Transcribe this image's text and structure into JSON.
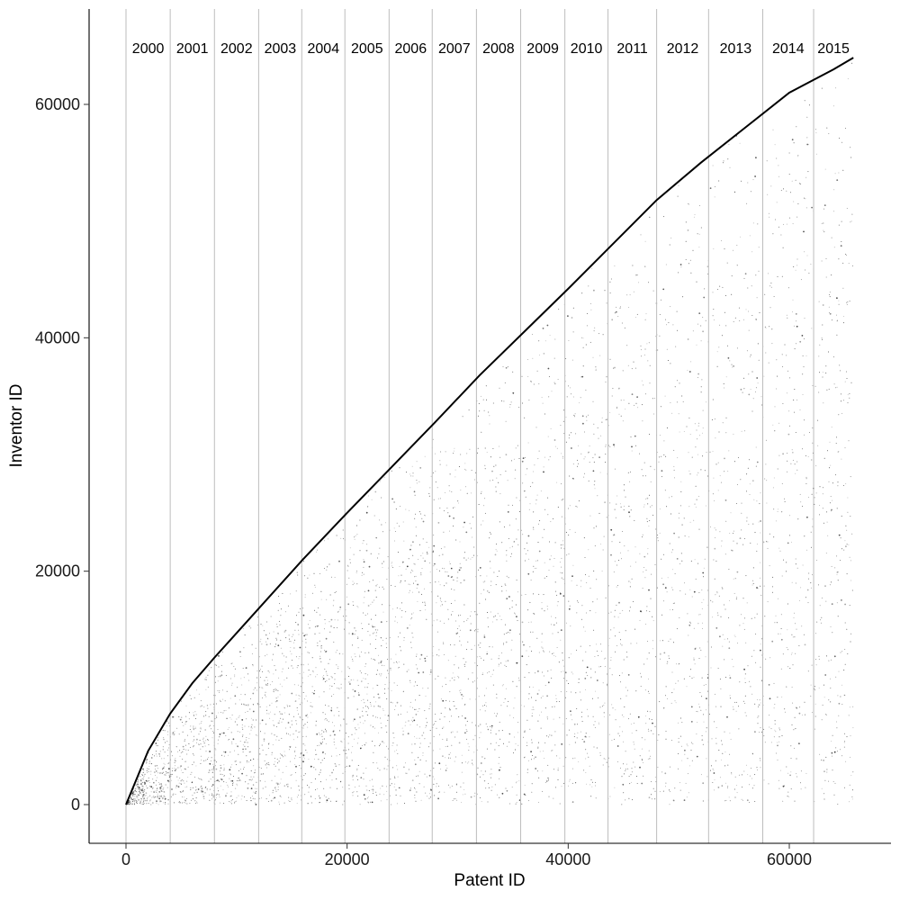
{
  "chart_data": {
    "type": "scatter",
    "title": "",
    "xlabel": "Patent ID",
    "ylabel": "Inventor ID",
    "xlim": [
      -3200,
      69000
    ],
    "ylim": [
      -3200,
      68000
    ],
    "x_ticks": [
      0,
      20000,
      40000,
      60000
    ],
    "y_ticks": [
      0,
      20000,
      40000,
      60000
    ],
    "grid": false,
    "year_boundaries": [
      {
        "year": "2000",
        "start": 0,
        "end": 4000
      },
      {
        "year": "2001",
        "start": 4000,
        "end": 8000
      },
      {
        "year": "2002",
        "start": 8000,
        "end": 12000
      },
      {
        "year": "2003",
        "start": 12000,
        "end": 15900
      },
      {
        "year": "2004",
        "start": 15900,
        "end": 19800
      },
      {
        "year": "2005",
        "start": 19800,
        "end": 23800
      },
      {
        "year": "2006",
        "start": 23800,
        "end": 27700
      },
      {
        "year": "2007",
        "start": 27700,
        "end": 31700
      },
      {
        "year": "2008",
        "start": 31700,
        "end": 35700
      },
      {
        "year": "2009",
        "start": 35700,
        "end": 39700
      },
      {
        "year": "2010",
        "start": 39700,
        "end": 43600
      },
      {
        "year": "2011",
        "start": 43600,
        "end": 48000
      },
      {
        "year": "2012",
        "start": 48000,
        "end": 52700
      },
      {
        "year": "2013",
        "start": 52700,
        "end": 57600
      },
      {
        "year": "2014",
        "start": 57600,
        "end": 62200
      },
      {
        "year": "2015",
        "start": 62200,
        "end": 65800
      }
    ],
    "series": [
      {
        "type": "line",
        "x": [
          0,
          2000,
          4000,
          6000,
          8000,
          12000,
          16000,
          20000,
          24000,
          28000,
          32000,
          36000,
          40000,
          44000,
          48000,
          52000,
          56000,
          60000,
          64000,
          65800
        ],
        "y": [
          0,
          4600,
          7800,
          10400,
          12600,
          16800,
          21000,
          25000,
          28900,
          32800,
          36800,
          40500,
          44200,
          48000,
          51800,
          55000,
          58000,
          61000,
          63000,
          64000
        ]
      },
      {
        "type": "scatter",
        "description_range": {
          "x": [
            0,
            65800
          ],
          "y": [
            0,
            64000
          ]
        }
      }
    ]
  }
}
